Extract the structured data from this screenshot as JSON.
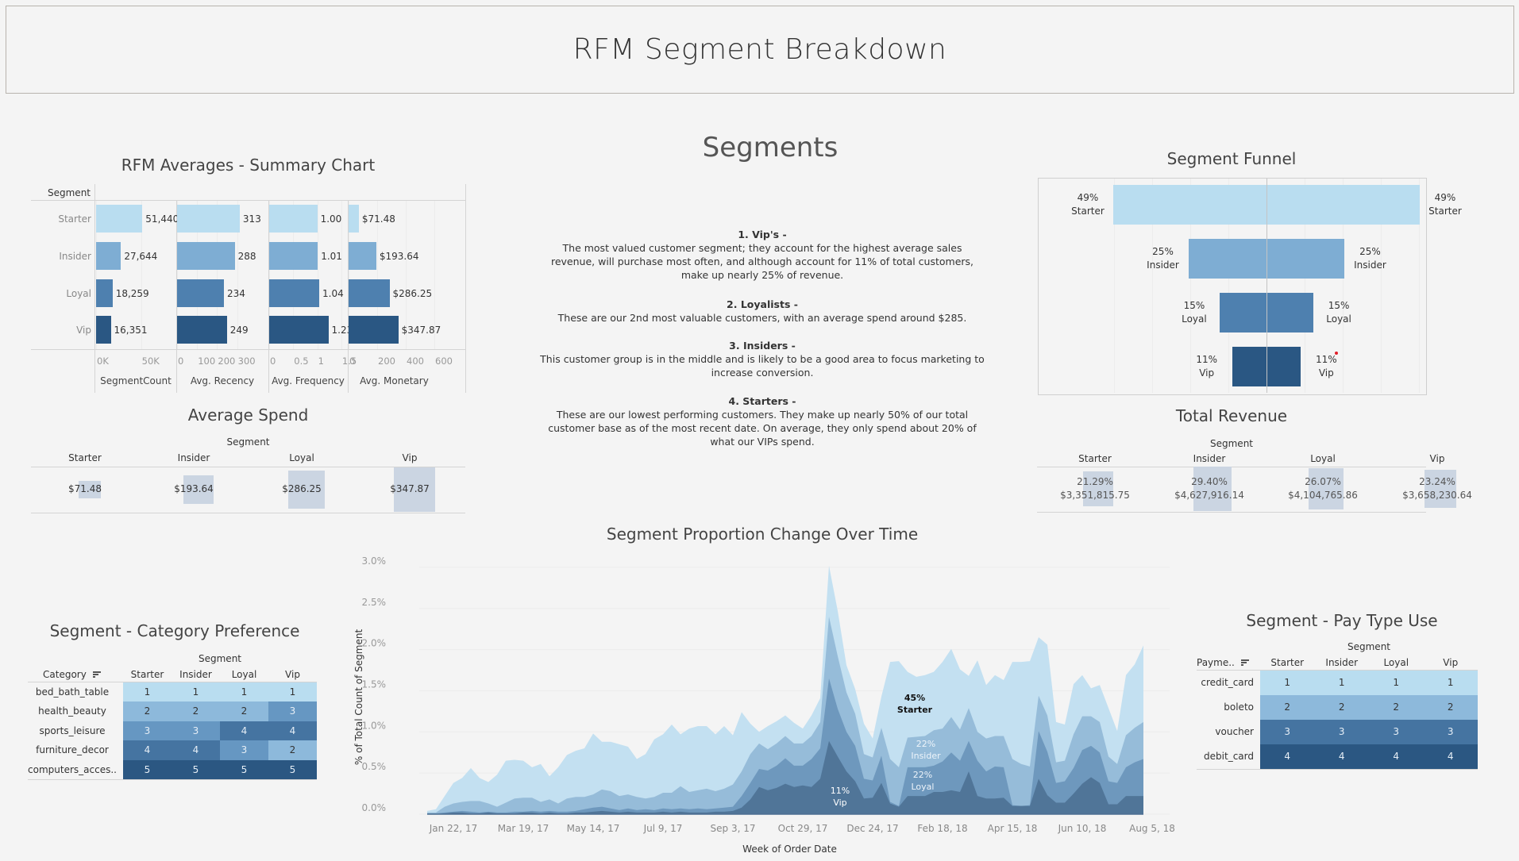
{
  "dashboard_title": "RFM Segment Breakdown",
  "colors": {
    "starter": "#b9ddf0",
    "insider": "#7eadd3",
    "loyal": "#4e80af",
    "vip": "#2a5783",
    "area_starter": "#c3e0f1",
    "area_insider": "#96bcd9",
    "area_loyal": "#6e98bd",
    "area_vip": "#507598",
    "highlight": "#cbd5e2"
  },
  "segments": [
    "Starter",
    "Insider",
    "Loyal",
    "Vip"
  ],
  "rfm_summary": {
    "title": "RFM Averages - Summary Chart",
    "row_header": "Segment",
    "rows": [
      "Starter",
      "Insider",
      "Loyal",
      "Vip"
    ],
    "measures": [
      {
        "name": "SegmentCount",
        "values": [
          51440,
          27644,
          18259,
          16351
        ],
        "labels": [
          "51,440",
          "27,644",
          "18,259",
          "16,351"
        ],
        "axis_max": 90000,
        "ticks": [
          {
            "v": 0,
            "t": "0K"
          },
          {
            "v": 50000,
            "t": "50K"
          }
        ]
      },
      {
        "name": "Avg. Recency",
        "values": [
          313,
          288,
          234,
          249
        ],
        "labels": [
          "313",
          "288",
          "234",
          "249"
        ],
        "axis_max": 460,
        "ticks": [
          {
            "v": 0,
            "t": "0"
          },
          {
            "v": 100,
            "t": "100"
          },
          {
            "v": 200,
            "t": "200"
          },
          {
            "v": 300,
            "t": "300"
          }
        ]
      },
      {
        "name": "Avg. Frequency",
        "values": [
          1.0,
          1.01,
          1.04,
          1.23
        ],
        "labels": [
          "1.00",
          "1.01",
          "1.04",
          "1.23"
        ],
        "axis_max": 1.65,
        "ticks": [
          {
            "v": 0,
            "t": "0"
          },
          {
            "v": 0.5,
            "t": "0.5"
          },
          {
            "v": 1,
            "t": "1"
          },
          {
            "v": 1.5,
            "t": "1.5"
          }
        ]
      },
      {
        "name": "Avg. Monetary",
        "values": [
          71.48,
          193.64,
          286.25,
          347.87
        ],
        "labels": [
          "$71.48",
          "$193.64",
          "$286.25",
          "$347.87"
        ],
        "axis_max": 650,
        "ticks": [
          {
            "v": 0,
            "t": "0"
          },
          {
            "v": 200,
            "t": "200"
          },
          {
            "v": 400,
            "t": "400"
          },
          {
            "v": 600,
            "t": "600"
          }
        ]
      }
    ]
  },
  "average_spend": {
    "title": "Average Spend",
    "header": "Segment",
    "columns": [
      "Starter",
      "Insider",
      "Loyal",
      "Vip"
    ],
    "values": [
      "$71.48",
      "$193.64",
      "$286.25",
      "$347.87"
    ],
    "raw": [
      71.48,
      193.64,
      286.25,
      347.87
    ]
  },
  "segments_text": {
    "title": "Segments",
    "items": [
      {
        "heading": "1. Vip's -",
        "body": "The most valued customer segment; they account for the highest average sales revenue, will purchase most often, and although account for 11% of total customers, make up nearly 25% of revenue."
      },
      {
        "heading": "2. Loyalists -",
        "body": "These are our 2nd most valuable customers, with an average spend around $285."
      },
      {
        "heading": "3. Insiders -",
        "body": "This customer group is in the middle and is likely to be a good area to focus marketing to increase conversion."
      },
      {
        "heading": "4. Starters -",
        "body": "These are our lowest performing customers. They make up nearly 50% of our total customer base as of the most recent date. On average, they only spend about 20% of what our VIPs spend."
      }
    ]
  },
  "segment_funnel": {
    "title": "Segment Funnel",
    "rows": [
      {
        "segment": "Starter",
        "pct": 49,
        "label": "49%"
      },
      {
        "segment": "Insider",
        "pct": 25,
        "label": "25%"
      },
      {
        "segment": "Loyal",
        "pct": 15,
        "label": "15%"
      },
      {
        "segment": "Vip",
        "pct": 11,
        "label": "11%"
      }
    ]
  },
  "total_revenue": {
    "title": "Total Revenue",
    "header": "Segment",
    "columns": [
      "Starter",
      "Insider",
      "Loyal",
      "Vip"
    ],
    "percent": [
      "21.29%",
      "29.40%",
      "26.07%",
      "23.24%"
    ],
    "amount": [
      "$3,351,815.75",
      "$4,627,916.14",
      "$4,104,765.86",
      "$3,658,230.64"
    ],
    "raw_pct": [
      21.29,
      29.4,
      26.07,
      23.24
    ]
  },
  "category_preference": {
    "title": "Segment - Category Preference",
    "header": "Segment",
    "row_header": "Category",
    "columns": [
      "Starter",
      "Insider",
      "Loyal",
      "Vip"
    ],
    "rows": [
      {
        "label": "bed_bath_table",
        "values": [
          1,
          1,
          1,
          1
        ]
      },
      {
        "label": "health_beauty",
        "values": [
          2,
          2,
          2,
          3
        ]
      },
      {
        "label": "sports_leisure",
        "values": [
          3,
          3,
          4,
          4
        ]
      },
      {
        "label": "furniture_decor",
        "values": [
          4,
          4,
          3,
          2
        ]
      },
      {
        "label": "computers_acces..",
        "values": [
          5,
          5,
          5,
          5
        ]
      }
    ],
    "rank_colors": [
      "#b9ddf0",
      "#8db9db",
      "#6697c2",
      "#4574a1",
      "#2b5782"
    ]
  },
  "pay_type": {
    "title": "Segment - Pay Type Use",
    "header": "Segment",
    "row_header": "Payme..",
    "columns": [
      "Starter",
      "Insider",
      "Loyal",
      "Vip"
    ],
    "rows": [
      {
        "label": "credit_card",
        "values": [
          1,
          1,
          1,
          1
        ]
      },
      {
        "label": "boleto",
        "values": [
          2,
          2,
          2,
          2
        ]
      },
      {
        "label": "voucher",
        "values": [
          3,
          3,
          3,
          3
        ]
      },
      {
        "label": "debit_card",
        "values": [
          4,
          4,
          4,
          4
        ]
      }
    ],
    "rank_colors": [
      "#b9ddf0",
      "#8db9db",
      "#4574a1",
      "#2b5782"
    ]
  },
  "chart_data": {
    "type": "area",
    "stacked": true,
    "title": "Segment Proportion Change Over Time",
    "xlabel": "Week of Order Date",
    "ylabel": "% of Total Count of Segment",
    "ylim": [
      0,
      3.0
    ],
    "yticks": [
      "0.0%",
      "0.5%",
      "1.0%",
      "1.5%",
      "2.0%",
      "2.5%",
      "3.0%"
    ],
    "ytick_values": [
      0,
      0.5,
      1.0,
      1.5,
      2.0,
      2.5,
      3.0
    ],
    "x_start": "2017-01-01",
    "x_step_days": 7,
    "xticks": [
      "Jan 22, 17",
      "Mar 19, 17",
      "May 14, 17",
      "Jul 9, 17",
      "Sep 3, 17",
      "Oct 29, 17",
      "Dec 24, 17",
      "Feb 18, 18",
      "Apr 15, 18",
      "Jun 10, 18",
      "Aug 5, 18"
    ],
    "xtick_week_index": [
      3,
      11,
      19,
      27,
      35,
      43,
      51,
      59,
      67,
      75,
      83
    ],
    "grid": true,
    "series": [
      {
        "name": "Vip",
        "label": "11%",
        "values": [
          0.0,
          0.0,
          0.01,
          0.02,
          0.02,
          0.01,
          0.01,
          0.02,
          0.01,
          0.01,
          0.01,
          0.02,
          0.02,
          0.01,
          0.02,
          0.01,
          0.01,
          0.02,
          0.02,
          0.03,
          0.04,
          0.03,
          0.02,
          0.03,
          0.02,
          0.02,
          0.02,
          0.03,
          0.02,
          0.03,
          0.02,
          0.02,
          0.02,
          0.03,
          0.03,
          0.04,
          0.08,
          0.18,
          0.33,
          0.29,
          0.32,
          0.37,
          0.33,
          0.35,
          0.33,
          0.43,
          0.89,
          0.7,
          0.52,
          0.4,
          0.19,
          0.2,
          0.38,
          0.13,
          0.09,
          0.22,
          0.22,
          0.22,
          0.27,
          0.27,
          0.29,
          0.27,
          0.52,
          0.22,
          0.19,
          0.19,
          0.2,
          0.1,
          0.1,
          0.1,
          0.43,
          0.23,
          0.14,
          0.14,
          0.25,
          0.37,
          0.45,
          0.38,
          0.12,
          0.12,
          0.22,
          0.22,
          0.22
        ]
      },
      {
        "name": "Loyal",
        "label": "22%",
        "values": [
          0.01,
          0.01,
          0.01,
          0.01,
          0.02,
          0.02,
          0.01,
          0.01,
          0.01,
          0.01,
          0.02,
          0.01,
          0.02,
          0.02,
          0.02,
          0.02,
          0.02,
          0.02,
          0.04,
          0.05,
          0.05,
          0.04,
          0.03,
          0.04,
          0.03,
          0.04,
          0.03,
          0.04,
          0.04,
          0.04,
          0.04,
          0.05,
          0.04,
          0.04,
          0.05,
          0.05,
          0.14,
          0.2,
          0.22,
          0.24,
          0.27,
          0.31,
          0.26,
          0.24,
          0.34,
          0.37,
          0.76,
          0.58,
          0.48,
          0.43,
          0.24,
          0.21,
          0.33,
          0.02,
          0.01,
          0.35,
          0.35,
          0.35,
          0.32,
          0.37,
          0.46,
          0.38,
          0.37,
          0.43,
          0.33,
          0.39,
          0.37,
          0.01,
          0.0,
          0.01,
          0.58,
          0.53,
          0.24,
          0.26,
          0.31,
          0.41,
          0.38,
          0.37,
          0.28,
          0.26,
          0.35,
          0.41,
          0.45
        ]
      },
      {
        "name": "Insider",
        "label": "22%",
        "values": [
          0.01,
          0.01,
          0.07,
          0.1,
          0.11,
          0.13,
          0.14,
          0.1,
          0.07,
          0.12,
          0.16,
          0.17,
          0.16,
          0.12,
          0.14,
          0.1,
          0.16,
          0.17,
          0.15,
          0.16,
          0.21,
          0.21,
          0.17,
          0.17,
          0.16,
          0.13,
          0.16,
          0.19,
          0.2,
          0.27,
          0.21,
          0.22,
          0.25,
          0.21,
          0.23,
          0.27,
          0.3,
          0.35,
          0.31,
          0.26,
          0.27,
          0.27,
          0.27,
          0.27,
          0.28,
          0.32,
          0.75,
          0.64,
          0.48,
          0.39,
          0.3,
          0.28,
          0.34,
          0.52,
          0.47,
          0.36,
          0.37,
          0.38,
          0.43,
          0.4,
          0.43,
          0.38,
          0.4,
          0.35,
          0.4,
          0.37,
          0.38,
          0.56,
          0.51,
          0.47,
          0.43,
          0.44,
          0.25,
          0.25,
          0.41,
          0.41,
          0.36,
          0.37,
          0.3,
          0.23,
          0.39,
          0.42,
          0.45
        ]
      },
      {
        "name": "Starter",
        "label": "45%",
        "values": [
          0.02,
          0.04,
          0.13,
          0.25,
          0.29,
          0.4,
          0.28,
          0.26,
          0.39,
          0.51,
          0.47,
          0.45,
          0.37,
          0.46,
          0.28,
          0.44,
          0.53,
          0.56,
          0.59,
          0.74,
          0.58,
          0.6,
          0.63,
          0.58,
          0.46,
          0.54,
          0.7,
          0.71,
          0.83,
          0.63,
          0.77,
          0.78,
          0.76,
          0.69,
          0.76,
          0.6,
          0.72,
          0.37,
          0.14,
          0.28,
          0.27,
          0.25,
          0.25,
          0.18,
          0.25,
          0.29,
          0.62,
          0.55,
          0.33,
          0.3,
          0.37,
          0.23,
          0.38,
          1.18,
          1.29,
          0.8,
          0.73,
          0.74,
          0.71,
          0.81,
          0.83,
          0.73,
          0.39,
          0.87,
          0.65,
          0.74,
          0.68,
          1.18,
          1.24,
          1.28,
          0.71,
          0.86,
          0.49,
          0.44,
          0.61,
          0.5,
          0.34,
          0.45,
          0.59,
          0.4,
          0.73,
          0.77,
          0.93
        ]
      }
    ]
  }
}
